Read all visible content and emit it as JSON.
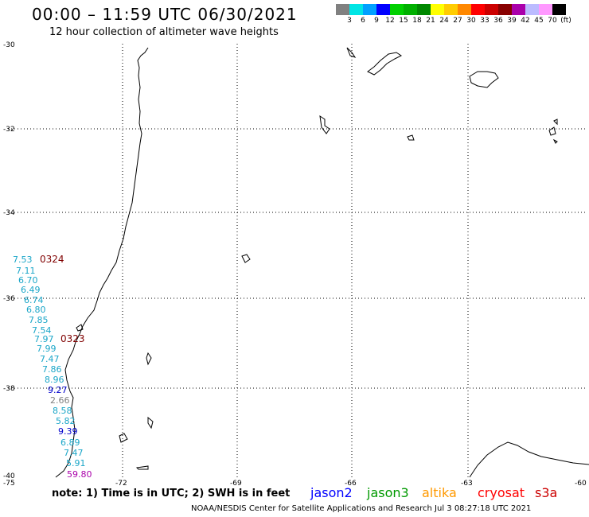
{
  "header": {
    "title": "00:00 – 11:59 UTC 06/30/2021",
    "subtitle": "12 hour collection of altimeter wave heights"
  },
  "colorbar": {
    "colors": [
      "#808080",
      "#00e5e5",
      "#00a0ff",
      "#0000ff",
      "#00d000",
      "#00b000",
      "#008800",
      "#ffff00",
      "#ffcc00",
      "#ff8800",
      "#ff0000",
      "#cc0000",
      "#880000",
      "#aa00aa",
      "#bbbbff",
      "#ff99ff",
      "#000000"
    ],
    "labels": [
      "3",
      "6",
      "9",
      "12",
      "15",
      "18",
      "21",
      "24",
      "27",
      "30",
      "33",
      "36",
      "39",
      "42",
      "45",
      "70"
    ],
    "unit": "(ft)"
  },
  "axes": {
    "lat_labels": [
      "-30",
      "-32",
      "-34",
      "-36",
      "-38",
      "-40"
    ],
    "lon_labels": [
      "-75",
      "-72",
      "-69",
      "-66",
      "-63",
      "-60"
    ]
  },
  "passes": [
    {
      "text": "0324",
      "color": "#800000"
    },
    {
      "text": "0323",
      "color": "#800000"
    }
  ],
  "wave_heights": [
    {
      "text": "7.53",
      "color": "#1aa6c8"
    },
    {
      "text": "7.11",
      "color": "#1aa6c8"
    },
    {
      "text": "6.70",
      "color": "#1aa6c8"
    },
    {
      "text": "6.49",
      "color": "#1aa6c8"
    },
    {
      "text": "6.74",
      "color": "#1aa6c8"
    },
    {
      "text": "6.80",
      "color": "#1aa6c8"
    },
    {
      "text": "7.85",
      "color": "#1aa6c8"
    },
    {
      "text": "7.54",
      "color": "#1aa6c8"
    },
    {
      "text": "7.97",
      "color": "#1aa6c8"
    },
    {
      "text": "7.99",
      "color": "#1aa6c8"
    },
    {
      "text": "7.47",
      "color": "#1aa6c8"
    },
    {
      "text": "7.86",
      "color": "#1aa6c8"
    },
    {
      "text": "8.96",
      "color": "#1aa6c8"
    },
    {
      "text": "9.27",
      "color": "#0000cc"
    },
    {
      "text": "2.66",
      "color": "#808080"
    },
    {
      "text": "8.58",
      "color": "#1aa6c8"
    },
    {
      "text": "5.82",
      "color": "#1aa6c8"
    },
    {
      "text": "9.39",
      "color": "#0000cc"
    },
    {
      "text": "6.89",
      "color": "#1aa6c8"
    },
    {
      "text": "7.47",
      "color": "#1aa6c8"
    },
    {
      "text": "5.91",
      "color": "#1aa6c8"
    },
    {
      "text": "59.80",
      "color": "#aa00aa"
    }
  ],
  "legend": {
    "note": "note: 1) Time is in UTC; 2) SWH is in feet",
    "satellites": [
      {
        "name": "jason2",
        "color": "#0000ff"
      },
      {
        "name": "jason3",
        "color": "#009900"
      },
      {
        "name": "altika",
        "color": "#ff9900"
      },
      {
        "name": "cryosat",
        "color": "#ff0000"
      },
      {
        "name": "s3a",
        "color": "#cc0000"
      }
    ]
  },
  "footer": "NOAA/NESDIS Center for Satellite Applications and Research   Jul  3 08:27:18 UTC 2021"
}
